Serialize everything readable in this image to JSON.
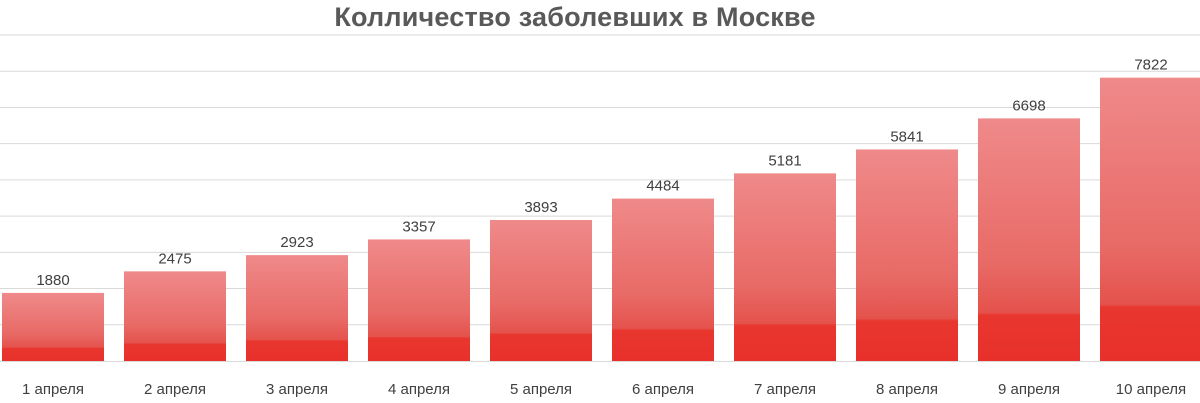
{
  "chart_data": {
    "type": "bar",
    "title": "Колличество заболевших в Москве",
    "categories": [
      "1 апреля",
      "2 апреля",
      "3 апреля",
      "4 апреля",
      "5 апреля",
      "6 апреля",
      "7 апреля",
      "8 апреля",
      "9 апреля",
      "10 апреля"
    ],
    "values": [
      1880,
      2475,
      2923,
      3357,
      3893,
      4484,
      5181,
      5841,
      6698,
      7822
    ],
    "xlabel": "",
    "ylabel": "",
    "ylim": [
      0,
      9000
    ],
    "grid": true,
    "legend": "none",
    "colors": {
      "bar_top": "#ef8a8a",
      "bar_bottom": "#e8302a",
      "grid": "#d9d9d9",
      "text": "#404040",
      "title": "#595959"
    }
  }
}
